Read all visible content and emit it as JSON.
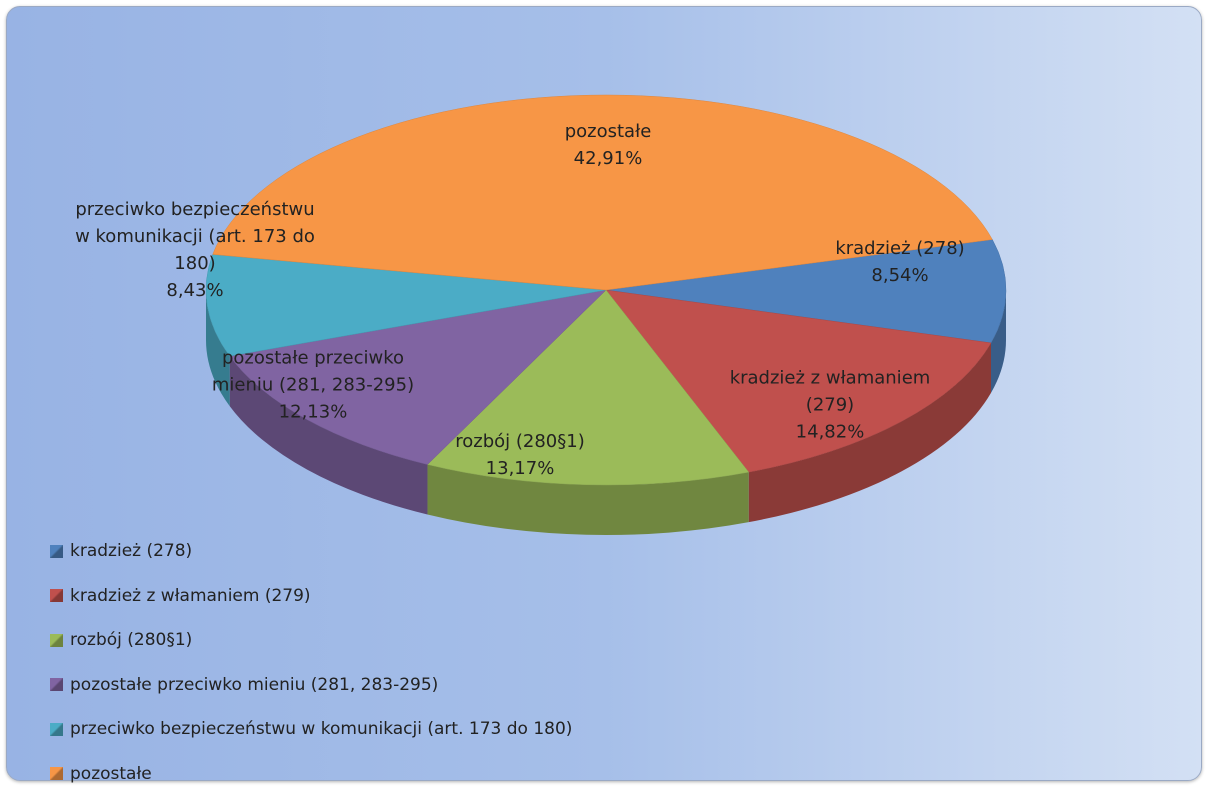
{
  "chart_data": {
    "type": "pie",
    "categories": [
      "kradzież (278)",
      "kradzież z włamaniem (279)",
      "rozbój (280§1)",
      "pozostałe przeciwko mieniu (281, 283-295)",
      "przeciwko bezpieczeństwu w komunikacji (art. 173 do 180)",
      "pozostałe"
    ],
    "values": [
      8.54,
      14.82,
      13.17,
      12.13,
      8.43,
      42.91
    ],
    "value_labels": [
      "8,54%",
      "14,82%",
      "13,17%",
      "12,13%",
      "8,43%",
      "42,91%"
    ],
    "colors": [
      "#4f81bd",
      "#c0504d",
      "#9bbb59",
      "#8064a2",
      "#4bacc6",
      "#f79646"
    ],
    "legend": "bottom-left"
  }
}
